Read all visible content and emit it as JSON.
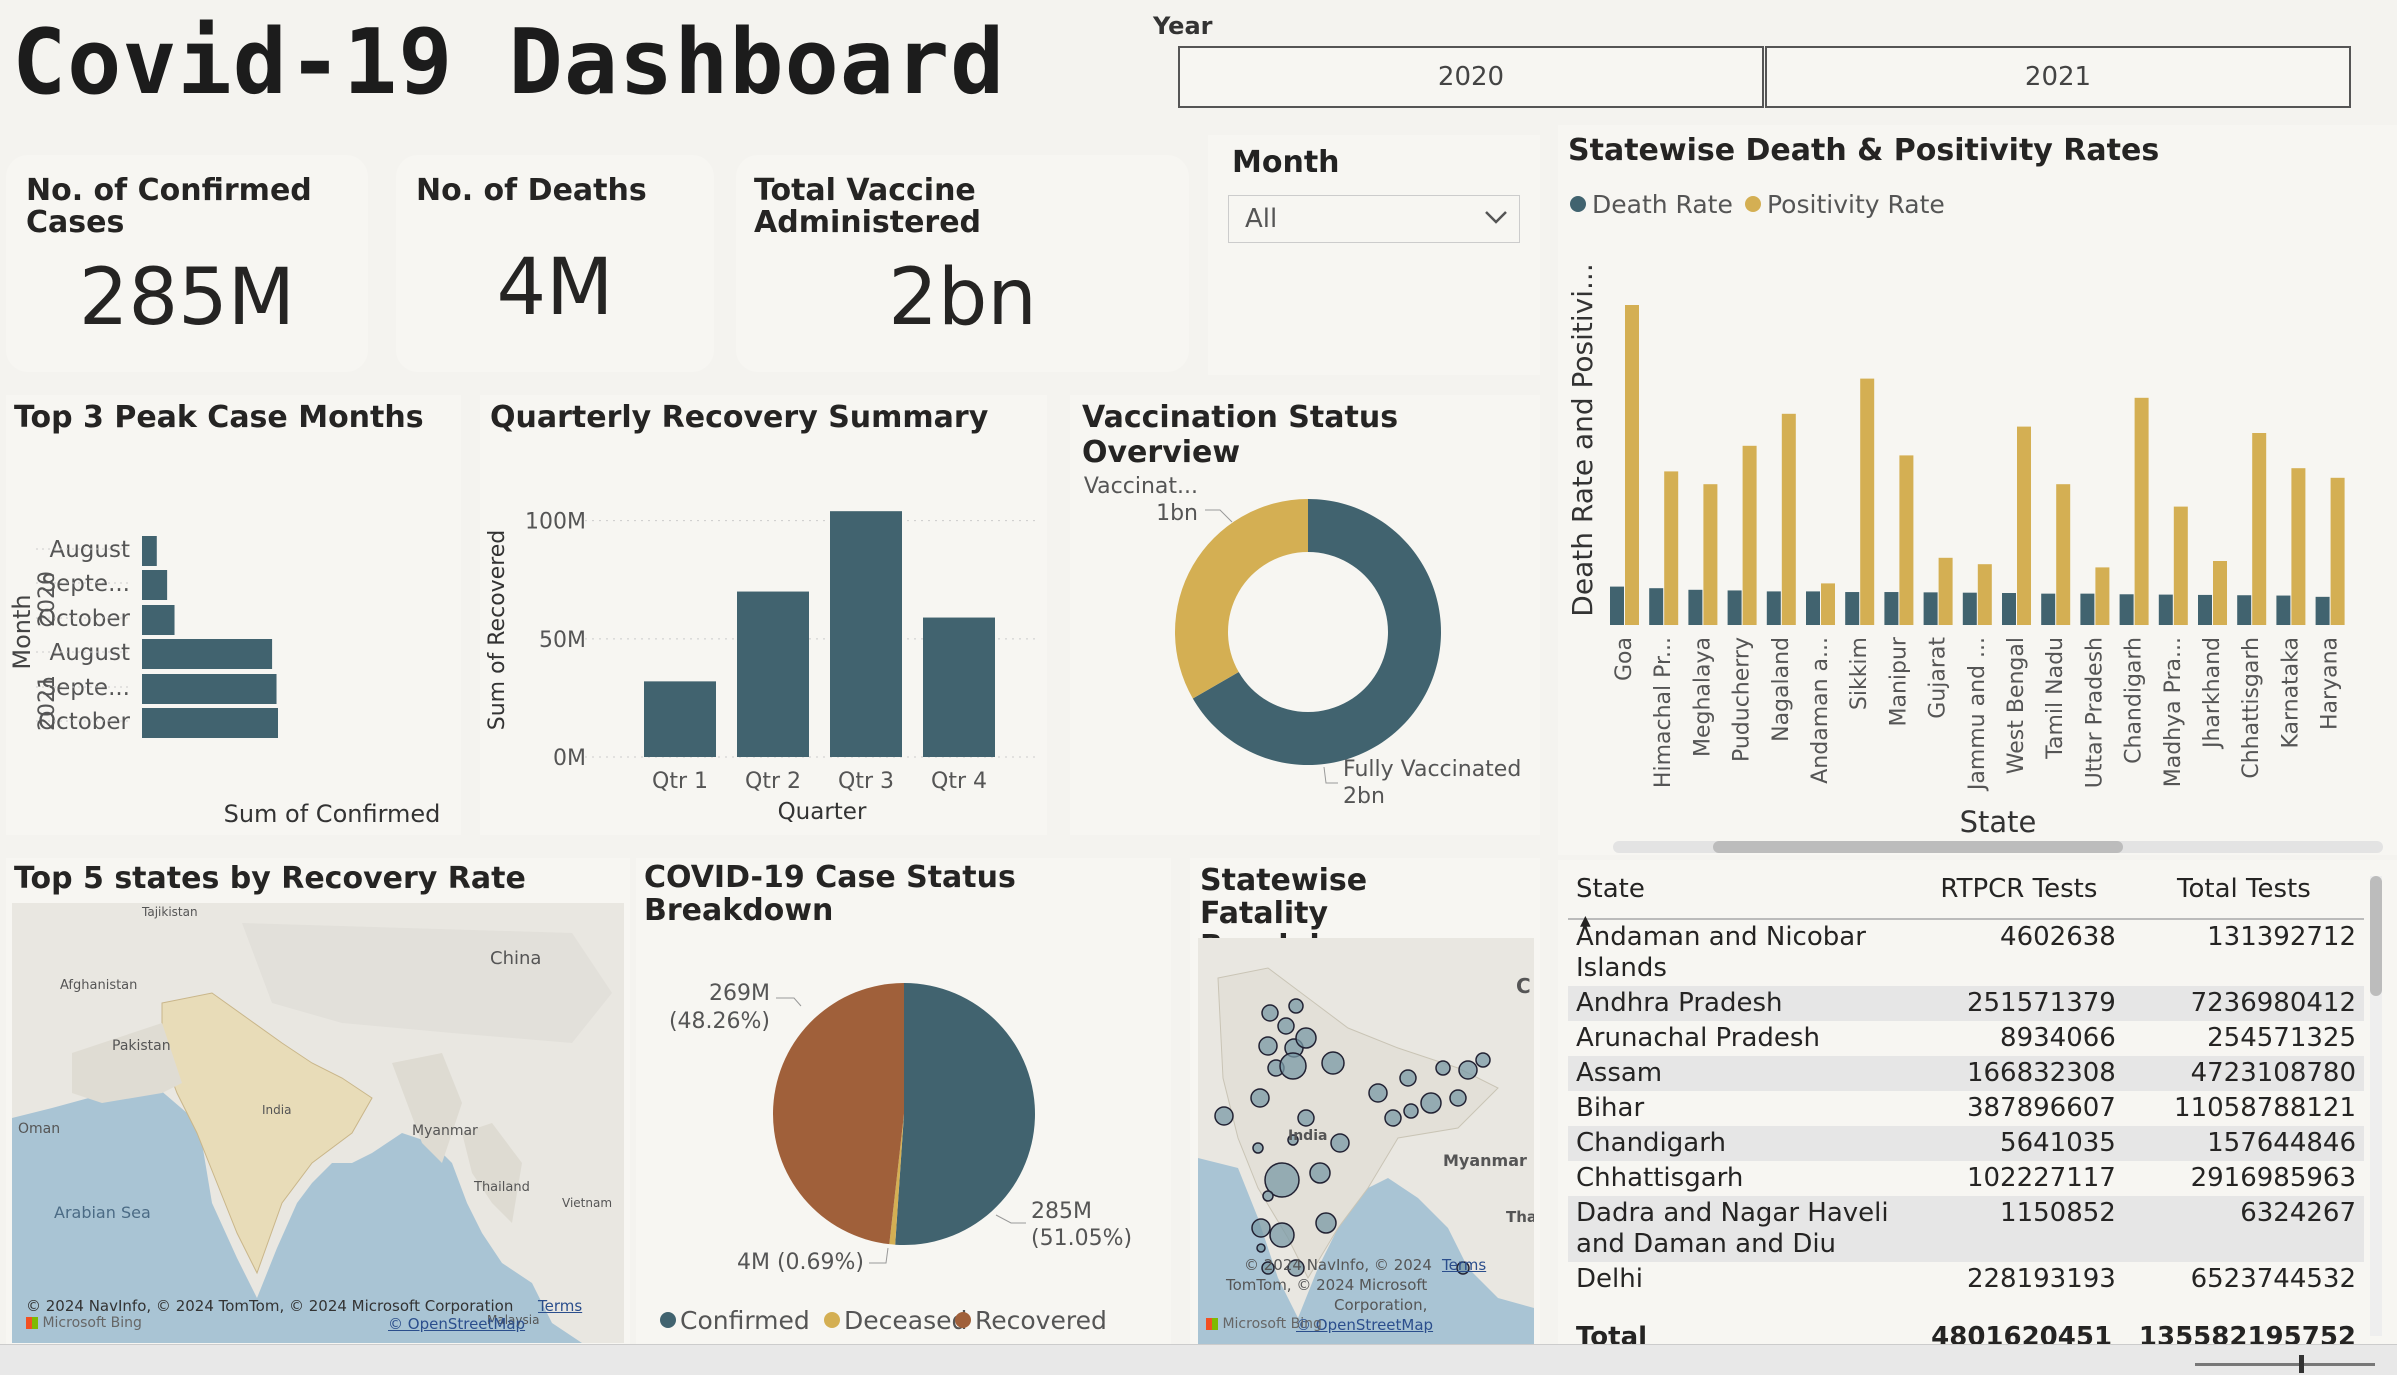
{
  "header": {
    "title": "Covid-19 Dashboard",
    "year_label": "Year",
    "years": [
      "2020",
      "2021"
    ]
  },
  "kpis": [
    {
      "title": "No. of Confirmed Cases",
      "value": "285M"
    },
    {
      "title": "No. of Deaths",
      "value": "4M"
    },
    {
      "title": "Total Vaccine Administered",
      "value": "2bn"
    }
  ],
  "month_slicer": {
    "label": "Month",
    "value": "All"
  },
  "peak_months": {
    "title": "Top 3 Peak Case Months",
    "ylabel": "Month",
    "xlabel": "Sum of Confirmed"
  },
  "quarterly": {
    "title": "Quarterly Recovery Summary"
  },
  "vaccination": {
    "title": "Vaccination Status Overview"
  },
  "death_positivity": {
    "title": "Statewise Death & Positivity Rates"
  },
  "recovery_map": {
    "title": "Top 5 states by Recovery Rate",
    "labels": [
      "Tajikistan",
      "Afghanistan",
      "Pakistan",
      "China",
      "India",
      "Oman",
      "Myanmar",
      "Thailand",
      "Vietnam",
      "Arabian Sea",
      "Malaysia"
    ],
    "copyright": "© 2024 NavInfo, © 2024 TomTom, © 2024 Microsoft Corporation",
    "terms": "Terms",
    "osm": "© OpenStreetMap",
    "bing": "Microsoft Bing"
  },
  "case_status": {
    "title": "COVID-19 Case Status Breakdown"
  },
  "fatality_map": {
    "title": "Statewise Fatality Breakdown",
    "labels": [
      "C",
      "India",
      "Myanmar",
      "Tha"
    ],
    "copyright1": "© 2024 NavInfo, © 2024",
    "copyright2": "TomTom, © 2024 Microsoft",
    "copyright3": "Corporation,",
    "terms": "Terms",
    "osm": "© OpenStreetMap",
    "bing": "Microsoft Bing"
  },
  "state_table": {
    "headers": [
      "State",
      "RTPCR Tests",
      "Total Tests"
    ],
    "rows": [
      [
        "Andaman and Nicobar Islands",
        "4602638",
        "131392712"
      ],
      [
        "Andhra Pradesh",
        "251571379",
        "7236980412"
      ],
      [
        "Arunachal Pradesh",
        "8934066",
        "254571325"
      ],
      [
        "Assam",
        "166832308",
        "4723108780"
      ],
      [
        "Bihar",
        "387896607",
        "11058788121"
      ],
      [
        "Chandigarh",
        "5641035",
        "157644846"
      ],
      [
        "Chhattisgarh",
        "102227117",
        "2916985963"
      ],
      [
        "Dadra and Nagar Haveli and Daman and Diu",
        "1150852",
        "6324267"
      ],
      [
        "Delhi",
        "228193193",
        "6523744532"
      ]
    ],
    "total": [
      "Total",
      "4801620451",
      "135582195752"
    ]
  },
  "colors": {
    "teal": "#41636f",
    "gold": "#d4af53",
    "brown": "#a0603a",
    "bg": "#f4f3ef"
  },
  "chart_data": [
    {
      "type": "bar",
      "orientation": "horizontal",
      "title": "Top 3 Peak Case Months",
      "groups": [
        "2020",
        "2020",
        "2020",
        "2021",
        "2021",
        "2021"
      ],
      "categories": [
        "August",
        "Septe...",
        "October",
        "August",
        "Septe...",
        "October"
      ],
      "values": [
        10,
        17,
        22,
        88,
        91,
        92
      ],
      "xlabel": "Sum of Confirmed",
      "ylabel": "Month"
    },
    {
      "type": "bar",
      "title": "Quarterly Recovery Summary",
      "categories": [
        "Qtr 1",
        "Qtr 2",
        "Qtr 3",
        "Qtr 4"
      ],
      "values": [
        32000000,
        70000000,
        104000000,
        59000000
      ],
      "yticks": [
        "0M",
        "50M",
        "100M"
      ],
      "ylim": [
        0,
        110000000
      ],
      "xlabel": "Quarter",
      "ylabel": "Sum of Recovered"
    },
    {
      "type": "pie",
      "variant": "donut",
      "title": "Vaccination Status Overview",
      "labels": [
        "Vaccinat...",
        "Fully Vaccinated"
      ],
      "value_labels": [
        "1bn",
        "2bn"
      ],
      "values": [
        1,
        2
      ]
    },
    {
      "type": "bar",
      "title": "Statewise Death & Positivity Rates",
      "xlabel": "State",
      "ylabel": "Death Rate and Positivi...",
      "legend": "top-left",
      "categories": [
        "Goa",
        "Himachal Pr...",
        "Meghalaya",
        "Puducherry",
        "Nagaland",
        "Andaman a...",
        "Sikkim",
        "Manipur",
        "Gujarat",
        "Jammu and ...",
        "West Bengal",
        "Tamil Nadu",
        "Uttar Pradesh",
        "Chandigarh",
        "Madhya Pra...",
        "Jharkhand",
        "Chhattisgarh",
        "Karnataka",
        "Haryana"
      ],
      "series": [
        {
          "name": "Death Rate",
          "values": [
            12,
            11.5,
            11,
            10.8,
            10.5,
            10.5,
            10.3,
            10.3,
            10.2,
            10.1,
            10,
            9.8,
            9.8,
            9.6,
            9.5,
            9.4,
            9.3,
            9.2,
            8.8
          ]
        },
        {
          "name": "Positivity Rate",
          "values": [
            100,
            48,
            44,
            56,
            66,
            13,
            77,
            53,
            21,
            19,
            62,
            44,
            18,
            71,
            37,
            20,
            60,
            49,
            46
          ]
        }
      ]
    },
    {
      "type": "pie",
      "title": "COVID-19 Case Status Breakdown",
      "labels": [
        "Confirmed",
        "Deceased",
        "Recovered"
      ],
      "values": [
        285,
        4,
        269
      ],
      "value_labels": [
        "285M (51.05%)",
        "4M (0.69%)",
        "269M (48.26%)"
      ]
    }
  ]
}
